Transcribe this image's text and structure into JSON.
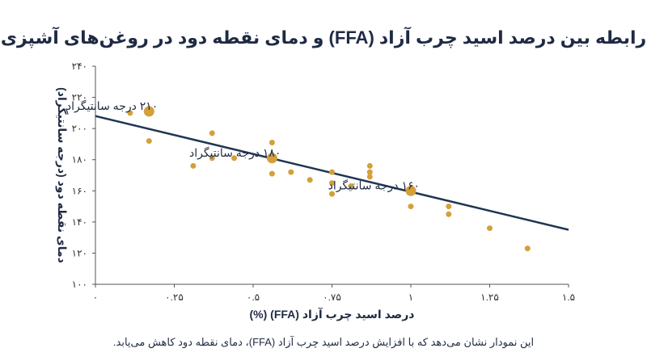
{
  "title": "رابطه بین درصد اسید چرب آزاد (FFA) و دمای نقطه دود در روغن‌های آشپزی",
  "caption": "این نمودار نشان می‌دهد که با افزایش درصد اسید چرب آزاد (FFA)، دمای نقطه دود کاهش می‌یابد.",
  "colors": {
    "points": "#d4a03c",
    "line": "#1f3553",
    "axis": "#555555"
  },
  "chart_data": {
    "type": "scatter",
    "xlabel": "درصد اسید چرب آزاد (FFA) (%)",
    "ylabel": "دمای نقطه دود (درجه سانتیگراد)",
    "xlim": [
      0,
      1.5
    ],
    "ylim": [
      100,
      240
    ],
    "x_ticks": [
      {
        "value": 0,
        "label": "۰"
      },
      {
        "value": 0.25,
        "label": "۰.۲۵"
      },
      {
        "value": 0.5,
        "label": "۰.۵"
      },
      {
        "value": 0.75,
        "label": "۰.۷۵"
      },
      {
        "value": 1,
        "label": "۱"
      },
      {
        "value": 1.25,
        "label": "۱.۲۵"
      },
      {
        "value": 1.5,
        "label": "۱.۵"
      }
    ],
    "y_ticks": [
      {
        "value": 100,
        "label": "۱۰۰"
      },
      {
        "value": 120,
        "label": "۱۲۰"
      },
      {
        "value": 140,
        "label": "۱۴۰"
      },
      {
        "value": 160,
        "label": "۱۶۰"
      },
      {
        "value": 180,
        "label": "۱۸۰"
      },
      {
        "value": 200,
        "label": "۲۰۰"
      },
      {
        "value": 220,
        "label": "۲۲۰"
      },
      {
        "value": 240,
        "label": "۲۴۰"
      }
    ],
    "points": [
      {
        "x": 0.11,
        "y": 210
      },
      {
        "x": 0.17,
        "y": 192
      },
      {
        "x": 0.31,
        "y": 176
      },
      {
        "x": 0.37,
        "y": 197
      },
      {
        "x": 0.37,
        "y": 181
      },
      {
        "x": 0.44,
        "y": 181
      },
      {
        "x": 0.56,
        "y": 191
      },
      {
        "x": 0.56,
        "y": 171
      },
      {
        "x": 0.62,
        "y": 172
      },
      {
        "x": 0.68,
        "y": 167
      },
      {
        "x": 0.75,
        "y": 172
      },
      {
        "x": 0.75,
        "y": 165
      },
      {
        "x": 0.75,
        "y": 158
      },
      {
        "x": 0.81,
        "y": 163
      },
      {
        "x": 0.87,
        "y": 176
      },
      {
        "x": 0.87,
        "y": 172
      },
      {
        "x": 0.87,
        "y": 169
      },
      {
        "x": 1.0,
        "y": 150
      },
      {
        "x": 1.12,
        "y": 150
      },
      {
        "x": 1.12,
        "y": 145
      },
      {
        "x": 1.25,
        "y": 136
      },
      {
        "x": 1.37,
        "y": 123
      }
    ],
    "highlighted_points": [
      {
        "x": 0.17,
        "y": 211,
        "label": "۲۱۰ درجه سانتیگراد"
      },
      {
        "x": 0.56,
        "y": 181,
        "label": "۱۸۰ درجه سانتیگراد"
      },
      {
        "x": 1.0,
        "y": 160,
        "label": "۱۶۰ درجه سانتیگراد"
      }
    ],
    "trend_line": {
      "x": [
        0,
        1.5
      ],
      "y": [
        208,
        135
      ]
    },
    "grid": false
  }
}
